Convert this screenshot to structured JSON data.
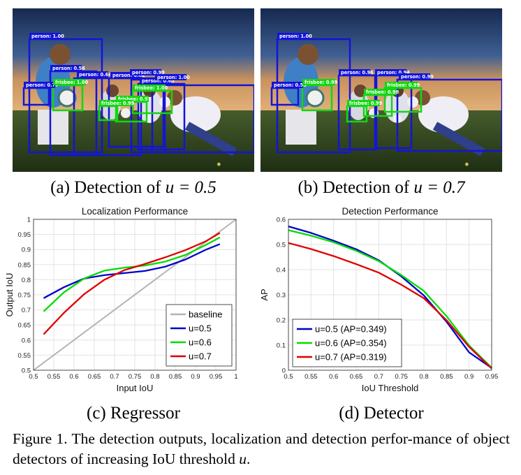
{
  "panels": {
    "a": {
      "caption_prefix": "(a) Detection of ",
      "caption_math": "u = 0.5",
      "detections": [
        {
          "label": "person: 1.00",
          "kind": "person"
        },
        {
          "label": "person: 0.56",
          "kind": "person"
        },
        {
          "label": "person: 0.77",
          "kind": "person"
        },
        {
          "label": "person: 0.64",
          "kind": "person"
        },
        {
          "label": "person: 0.82",
          "kind": "person"
        },
        {
          "label": "person: 0.99",
          "kind": "person"
        },
        {
          "label": "person: 0.63",
          "kind": "person"
        },
        {
          "label": "person: 1.00",
          "kind": "person"
        },
        {
          "label": "frisbee: 1.00",
          "kind": "frisbee"
        },
        {
          "label": "frisbee: 0.97",
          "kind": "frisbee"
        },
        {
          "label": "frisbee: 1.00",
          "kind": "frisbee"
        },
        {
          "label": "frisbee: 0.99",
          "kind": "frisbee"
        }
      ]
    },
    "b": {
      "caption_prefix": "(b) Detection of ",
      "caption_math": "u = 0.7",
      "detections": [
        {
          "label": "person: 1.00",
          "kind": "person"
        },
        {
          "label": "person: 0.55",
          "kind": "person"
        },
        {
          "label": "person: 0.96",
          "kind": "person"
        },
        {
          "label": "person: 0.94",
          "kind": "person"
        },
        {
          "label": "person: 0.99",
          "kind": "person"
        },
        {
          "label": "frisbee: 0.99",
          "kind": "frisbee"
        },
        {
          "label": "frisbee: 0.98",
          "kind": "frisbee"
        },
        {
          "label": "frisbee: 0.99",
          "kind": "frisbee"
        },
        {
          "label": "frisbee: 0.99",
          "kind": "frisbee"
        }
      ]
    },
    "c": {
      "caption": "(c) Regressor"
    },
    "d": {
      "caption": "(d) Detector"
    }
  },
  "colors": {
    "person_box": "#1414d8",
    "frisbee_box": "#13d613",
    "u05": "#0000cc",
    "u06": "#00dd00",
    "u07": "#e00000",
    "baseline": "#b4b4b4"
  },
  "figure_caption": {
    "lead": "Figure 1. The detection outputs, localization and detection perfor-mance of object detectors of increasing IoU threshold ",
    "math": "u",
    "tail": "."
  },
  "chart_data": [
    {
      "type": "line",
      "title": "Localization Performance",
      "xlabel": "Input IoU",
      "ylabel": "Output IoU",
      "xlim": [
        0.5,
        1.0
      ],
      "ylim": [
        0.5,
        1.0
      ],
      "xticks": [
        "0.5",
        "0.55",
        "0.6",
        "0.65",
        "0.7",
        "0.75",
        "0.8",
        "0.85",
        "0.9",
        "0.95",
        "1"
      ],
      "yticks": [
        "0.5",
        "0.55",
        "0.6",
        "0.65",
        "0.7",
        "0.75",
        "0.8",
        "0.85",
        "0.9",
        "0.95",
        "1"
      ],
      "grid": true,
      "legend_position": "bottom-right",
      "series": [
        {
          "name": "baseline",
          "color": "#b4b4b4",
          "x": [
            0.5,
            1.0
          ],
          "y": [
            0.5,
            1.0
          ]
        },
        {
          "name": "u=0.5",
          "color": "#0000cc",
          "x": [
            0.525,
            0.575,
            0.625,
            0.675,
            0.725,
            0.775,
            0.825,
            0.875,
            0.925,
            0.96
          ],
          "y": [
            0.739,
            0.775,
            0.804,
            0.815,
            0.822,
            0.829,
            0.843,
            0.867,
            0.899,
            0.918
          ]
        },
        {
          "name": "u=0.6",
          "color": "#00dd00",
          "x": [
            0.525,
            0.575,
            0.625,
            0.675,
            0.725,
            0.775,
            0.825,
            0.875,
            0.925,
            0.96
          ],
          "y": [
            0.695,
            0.758,
            0.804,
            0.83,
            0.84,
            0.847,
            0.86,
            0.882,
            0.915,
            0.94
          ]
        },
        {
          "name": "u=0.7",
          "color": "#e00000",
          "x": [
            0.525,
            0.575,
            0.625,
            0.675,
            0.725,
            0.775,
            0.825,
            0.875,
            0.925,
            0.96
          ],
          "y": [
            0.619,
            0.69,
            0.752,
            0.8,
            0.832,
            0.852,
            0.874,
            0.898,
            0.927,
            0.955
          ]
        }
      ]
    },
    {
      "type": "line",
      "title": "Detection Performance",
      "xlabel": "IoU Threshold",
      "ylabel": "AP",
      "xlim": [
        0.5,
        0.95
      ],
      "ylim": [
        0,
        0.6
      ],
      "xticks": [
        "0.5",
        "0.55",
        "0.6",
        "0.65",
        "0.7",
        "0.75",
        "0.8",
        "0.85",
        "0.9",
        "0.95"
      ],
      "yticks": [
        "0",
        "0.1",
        "0.2",
        "0.3",
        "0.4",
        "0.5",
        "0.6"
      ],
      "grid": true,
      "legend_position": "bottom-left",
      "series": [
        {
          "name": "u=0.5 (AP=0.349)",
          "color": "#0000cc",
          "x": [
            0.5,
            0.55,
            0.6,
            0.65,
            0.7,
            0.75,
            0.8,
            0.85,
            0.9,
            0.95
          ],
          "y": [
            0.572,
            0.546,
            0.515,
            0.481,
            0.437,
            0.373,
            0.297,
            0.193,
            0.071,
            0.009
          ]
        },
        {
          "name": "u=0.6 (AP=0.354)",
          "color": "#00dd00",
          "x": [
            0.5,
            0.55,
            0.6,
            0.65,
            0.7,
            0.75,
            0.8,
            0.85,
            0.9,
            0.95
          ],
          "y": [
            0.557,
            0.535,
            0.509,
            0.475,
            0.434,
            0.378,
            0.315,
            0.215,
            0.098,
            0.01
          ]
        },
        {
          "name": "u=0.7 (AP=0.319)",
          "color": "#e00000",
          "x": [
            0.5,
            0.55,
            0.6,
            0.65,
            0.7,
            0.75,
            0.8,
            0.85,
            0.9,
            0.95
          ],
          "y": [
            0.506,
            0.482,
            0.454,
            0.422,
            0.388,
            0.34,
            0.286,
            0.199,
            0.093,
            0.007
          ]
        }
      ]
    }
  ]
}
